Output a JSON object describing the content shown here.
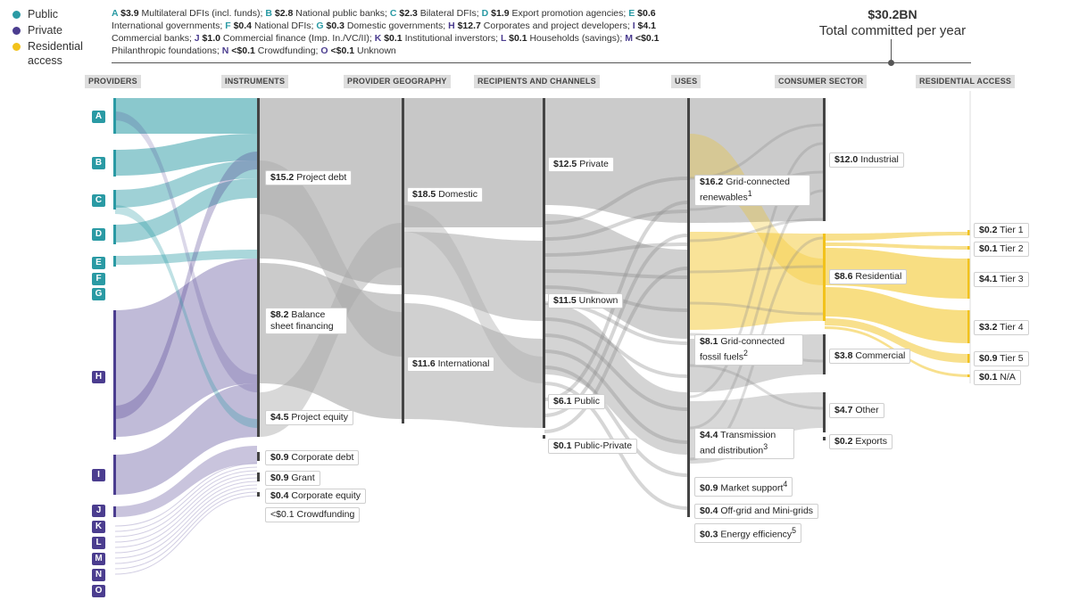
{
  "legend": {
    "public": "Public",
    "private": "Private",
    "residential": "Residential access",
    "colors": {
      "public": "#2a9aa4",
      "private": "#4b3d8f",
      "residential": "#f2c21b"
    }
  },
  "key": [
    {
      "letter": "A",
      "value": "$3.9",
      "label": "Multilateral DFIs (incl. funds)",
      "sector": "public"
    },
    {
      "letter": "B",
      "value": "$2.8",
      "label": "National public banks",
      "sector": "public"
    },
    {
      "letter": "C",
      "value": "$2.3",
      "label": "Bilateral DFIs",
      "sector": "public"
    },
    {
      "letter": "D",
      "value": "$1.9",
      "label": "Export promotion agencies",
      "sector": "public"
    },
    {
      "letter": "E",
      "value": "$0.6",
      "label": "International governments",
      "sector": "public"
    },
    {
      "letter": "F",
      "value": "$0.4",
      "label": "National DFIs",
      "sector": "public"
    },
    {
      "letter": "G",
      "value": "$0.3",
      "label": "Domestic governments",
      "sector": "public"
    },
    {
      "letter": "H",
      "value": "$12.7",
      "label": "Corporates and project developers",
      "sector": "private"
    },
    {
      "letter": "I",
      "value": "$4.1",
      "label": "Commercial banks",
      "sector": "private"
    },
    {
      "letter": "J",
      "value": "$1.0",
      "label": "Commercial finance (Imp. In./VC/II)",
      "sector": "private"
    },
    {
      "letter": "K",
      "value": "$0.1",
      "label": "Institutional inverstors",
      "sector": "private"
    },
    {
      "letter": "L",
      "value": "$0.1",
      "label": "Households (savings)",
      "sector": "private"
    },
    {
      "letter": "M",
      "value": "<$0.1",
      "label": "Philanthropic foundations",
      "sector": "private"
    },
    {
      "letter": "N",
      "value": "<$0.1",
      "label": "Crowdfunding",
      "sector": "private"
    },
    {
      "letter": "O",
      "value": "<$0.1",
      "label": "Unknown",
      "sector": "private"
    }
  ],
  "total": {
    "value": "$30.2BN",
    "label": "Total committed per year"
  },
  "columns": [
    "PROVIDERS",
    "INSTRUMENTS",
    "PROVIDER GEOGRAPHY",
    "RECIPIENTS AND CHANNELS",
    "USES",
    "CONSUMER SECTOR",
    "RESIDENTIAL ACCESS"
  ],
  "instruments": [
    {
      "value": "$15.2",
      "label": "Project debt"
    },
    {
      "value": "$8.2",
      "label": "Balance sheet financing"
    },
    {
      "value": "$4.5",
      "label": "Project equity"
    },
    {
      "value": "$0.9",
      "label": "Corporate debt"
    },
    {
      "value": "$0.9",
      "label": "Grant"
    },
    {
      "value": "$0.4",
      "label": "Corporate equity"
    },
    {
      "value": "<$0.1",
      "label": "Crowdfunding"
    }
  ],
  "geography": [
    {
      "value": "$18.5",
      "label": "Domestic"
    },
    {
      "value": "$11.6",
      "label": "International"
    }
  ],
  "recipients": [
    {
      "value": "$12.5",
      "label": "Private"
    },
    {
      "value": "$11.5",
      "label": "Unknown"
    },
    {
      "value": "$6.1",
      "label": "Public"
    },
    {
      "value": "$0.1",
      "label": "Public-Private"
    }
  ],
  "uses": [
    {
      "value": "$16.2",
      "label": "Grid-connected renewables",
      "sup": "1"
    },
    {
      "value": "$8.1",
      "label": "Grid-connected fossil fuels",
      "sup": "2"
    },
    {
      "value": "$4.4",
      "label": "Transmission and distribution",
      "sup": "3"
    },
    {
      "value": "$0.9",
      "label": "Market support",
      "sup": "4"
    },
    {
      "value": "$0.4",
      "label": "Off-grid and Mini-grids",
      "sup": ""
    },
    {
      "value": "$0.3",
      "label": "Energy efficiency",
      "sup": "5"
    }
  ],
  "consumer": [
    {
      "value": "$12.0",
      "label": "Industrial"
    },
    {
      "value": "$8.6",
      "label": "Residential"
    },
    {
      "value": "$3.8",
      "label": "Commercial"
    },
    {
      "value": "$4.7",
      "label": "Other"
    },
    {
      "value": "$0.2",
      "label": "Exports"
    }
  ],
  "access": [
    {
      "value": "$0.2",
      "label": "Tier 1"
    },
    {
      "value": "$0.1",
      "label": "Tier 2"
    },
    {
      "value": "$4.1",
      "label": "Tier 3"
    },
    {
      "value": "$3.2",
      "label": "Tier 4"
    },
    {
      "value": "$0.9",
      "label": "Tier 5"
    },
    {
      "value": "$0.1",
      "label": "N/A"
    }
  ]
}
